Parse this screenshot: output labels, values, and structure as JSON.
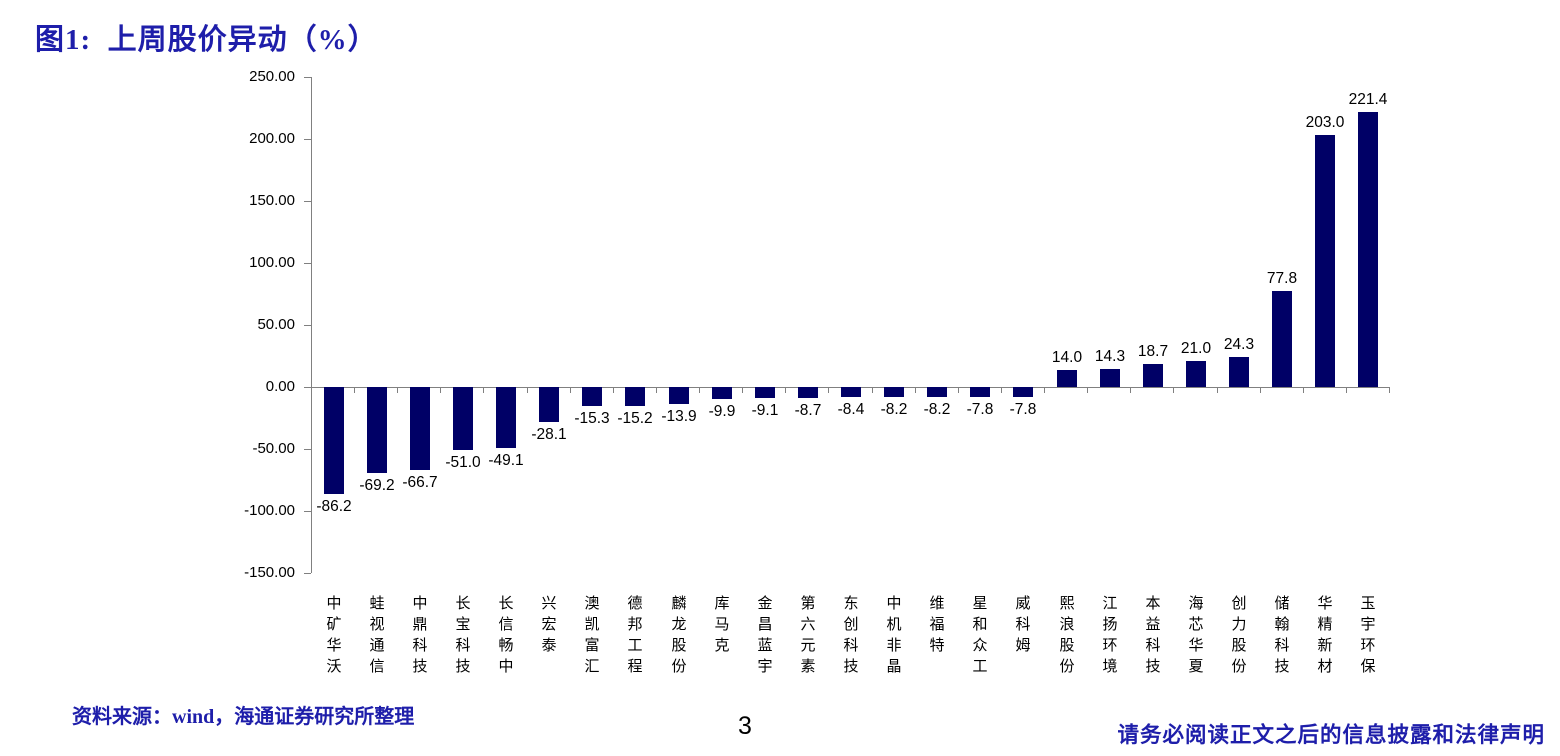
{
  "page": {
    "title": "图1:  上周股价异动（%）",
    "source_note": "资料来源：wind，海通证券研究所整理",
    "page_number": "3",
    "disclaimer": "请务必阅读正文之后的信息披露和法律声明"
  },
  "colors": {
    "bar": "#000066",
    "accent_blue": "#1e1eaa",
    "axis": "#808080",
    "text": "#000000"
  },
  "chart_data": {
    "type": "bar",
    "title": "上周股价异动（%）",
    "categories": [
      "中矿华沃",
      "蛙视通信",
      "中鼎科技",
      "长宝科技",
      "长信畅中",
      "兴宏泰",
      "澳凯富汇",
      "德邦工程",
      "麟龙股份",
      "库马克",
      "金昌蓝宇",
      "第六元素",
      "东创科技",
      "中机非晶",
      "维福特",
      "星和众工",
      "威科姆",
      "熙浪股份",
      "江扬环境",
      "本益科技",
      "海芯华夏",
      "创力股份",
      "储翰科技",
      "华精新材",
      "玉宇环保"
    ],
    "values": [
      -86.2,
      -69.2,
      -66.7,
      -51.0,
      -49.1,
      -28.1,
      -15.3,
      -15.2,
      -13.9,
      -9.9,
      -9.1,
      -8.7,
      -8.4,
      -8.2,
      -8.2,
      -7.8,
      -7.8,
      14.0,
      14.3,
      18.7,
      21.0,
      24.3,
      77.8,
      203.0,
      221.4
    ],
    "xlabel": "",
    "ylabel": "",
    "ylim": [
      -150,
      250
    ],
    "ytick_step": 50,
    "ytick_labels": [
      "250.00",
      "200.00",
      "150.00",
      "100.00",
      "50.00",
      "0.00",
      "-50.00",
      "-100.00",
      "-150.00"
    ],
    "grid": false,
    "legend_position": "none",
    "value_labels": "outside_end"
  }
}
